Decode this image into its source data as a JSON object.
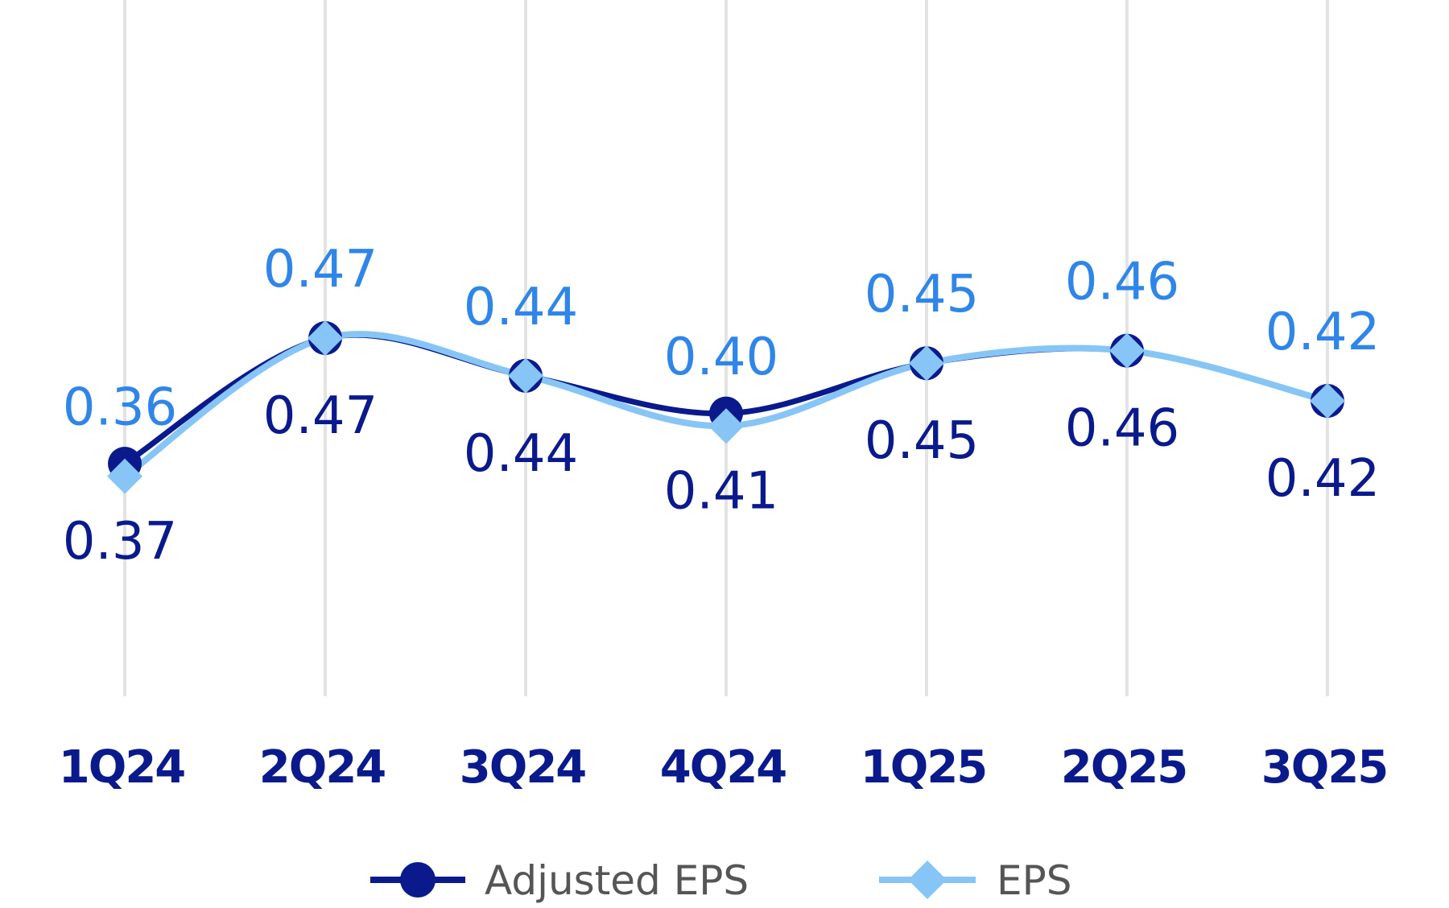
{
  "chart_data": {
    "type": "line",
    "categories": [
      "1Q24",
      "2Q24",
      "3Q24",
      "4Q24",
      "1Q25",
      "2Q25",
      "3Q25"
    ],
    "series": [
      {
        "name": "Adjusted EPS",
        "values": [
          0.37,
          0.47,
          0.44,
          0.41,
          0.45,
          0.46,
          0.42
        ],
        "labels": [
          "0.37",
          "0.47",
          "0.44",
          "0.41",
          "0.45",
          "0.46",
          "0.42"
        ],
        "color": "#0a1a8c",
        "marker": "circle",
        "label_position": "below"
      },
      {
        "name": "EPS",
        "values": [
          0.36,
          0.47,
          0.44,
          0.4,
          0.45,
          0.46,
          0.42
        ],
        "labels": [
          "0.36",
          "0.47",
          "0.44",
          "0.40",
          "0.45",
          "0.46",
          "0.42"
        ],
        "color": "#86c5f5",
        "label_color": "#2f86e8",
        "marker": "diamond",
        "label_position": "above"
      }
    ],
    "ylim": [
      0.25,
      0.62
    ],
    "grid": "vertical",
    "grid_color": "#e3e3e3",
    "category_label_color": "#0a1a8c",
    "legend_text_color": "#555555",
    "legend_position": "bottom-center",
    "title": "",
    "xlabel": "",
    "ylabel": ""
  }
}
